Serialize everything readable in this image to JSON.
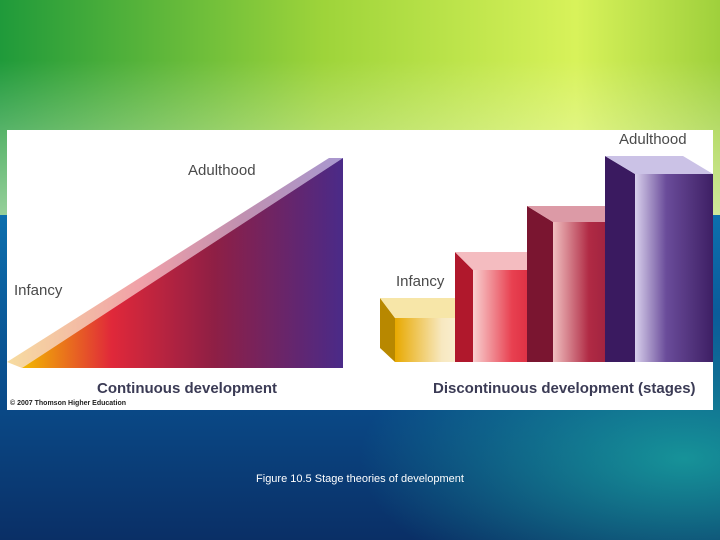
{
  "slide": {
    "caption": "Figure 10.5  Stage theories of development"
  },
  "continuous": {
    "start_label": "Infancy",
    "end_label": "Adulthood",
    "title": "Continuous development"
  },
  "discontinuous": {
    "start_label": "Infancy",
    "end_label": "Adulthood",
    "title": "Discontinuous development (stages)"
  },
  "copyright": "© 2007 Thomson Higher Education",
  "colors": {
    "yellow": "#e8a900",
    "red": "#d8203a",
    "maroon": "#8a1a3a",
    "purple": "#4a2878"
  }
}
